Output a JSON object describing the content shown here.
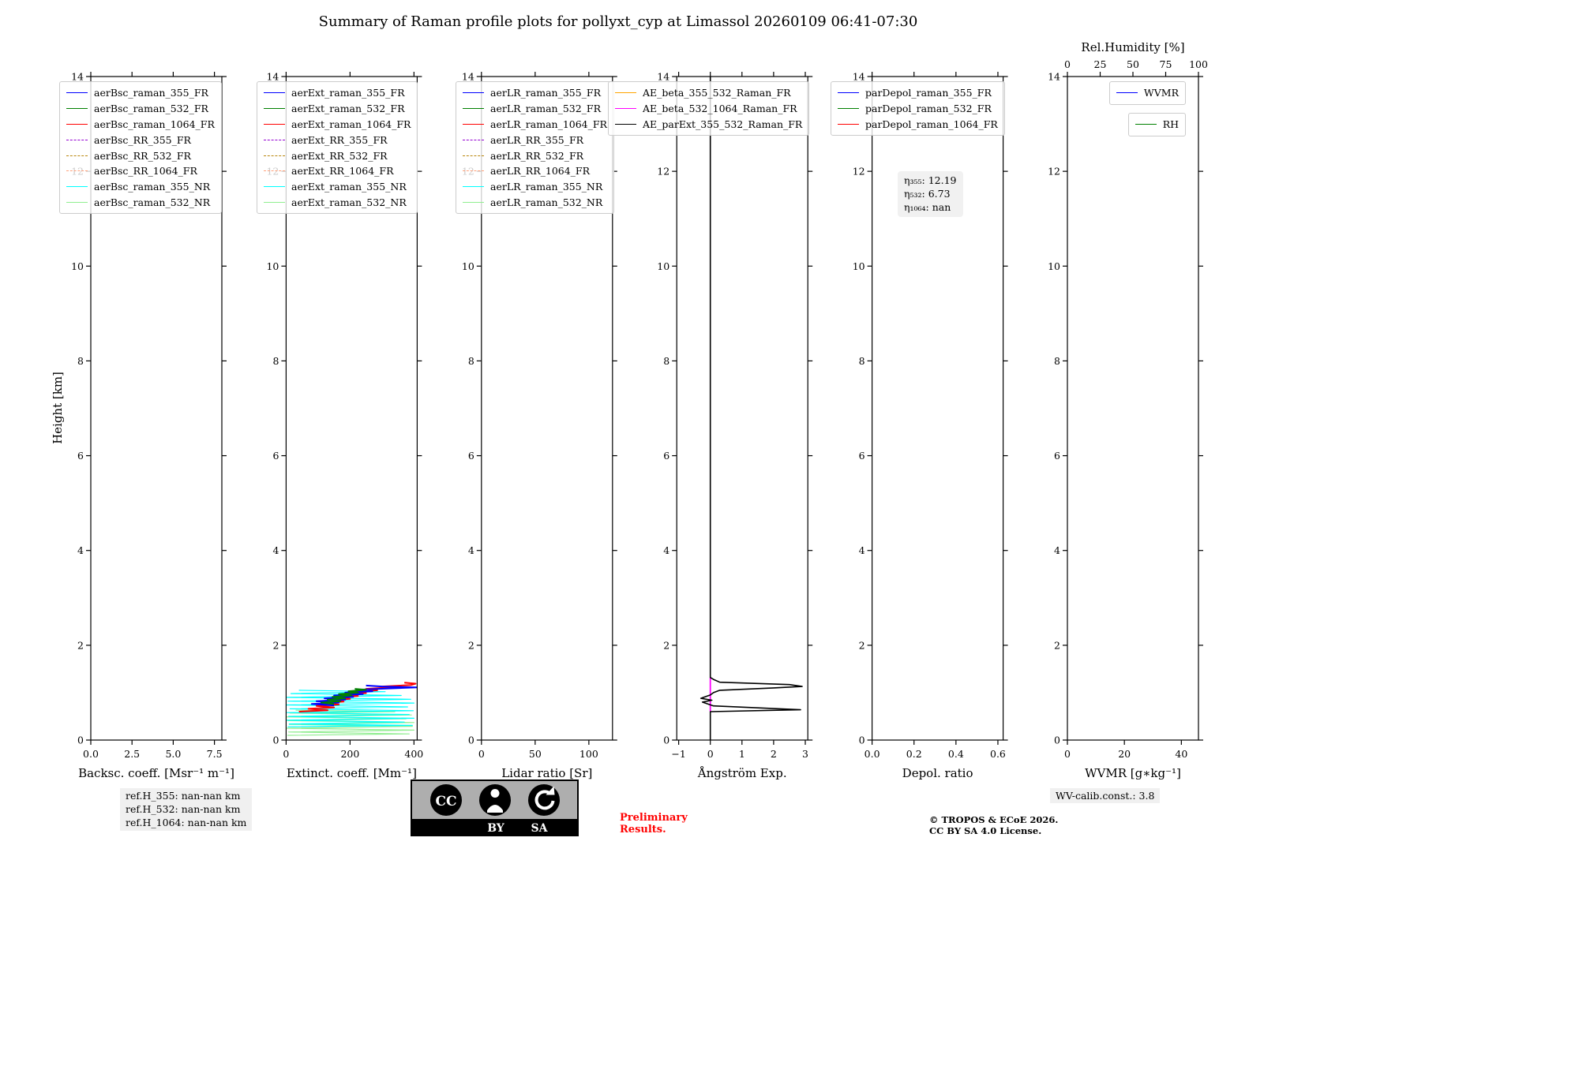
{
  "title": "Summary of Raman profile plots for pollyxt_cyp at Limassol 20260109 06:41-07:30",
  "ylabel": "Height [km]",
  "footer": {
    "ref_heights": [
      "ref.H_355: nan-nan km",
      "ref.H_532: nan-nan km",
      "ref.H_1064: nan-nan km"
    ],
    "cc_label": "CC",
    "cc_by": "BY",
    "cc_sa": "SA",
    "preliminary_line1": "Preliminary",
    "preliminary_line2": "Results.",
    "copyright_line1": "© TROPOS & ECoE 2026.",
    "copyright_line2": "CC BY SA 4.0 License.",
    "wv_calib": "WV-calib.const.: 3.8"
  },
  "chart_data": [
    {
      "type": "line",
      "id": "backscatter",
      "xlabel": "Backsc. coeff. [Msr⁻¹ m⁻¹]",
      "xlim": [
        0,
        7.95
      ],
      "xticks": [
        {
          "v": 0,
          "t": "0.0"
        },
        {
          "v": 2.5,
          "t": "2.5"
        },
        {
          "v": 5,
          "t": "5.0"
        },
        {
          "v": 7.5,
          "t": "7.5"
        }
      ],
      "ylim": [
        0,
        14
      ],
      "yticks": [
        0,
        2,
        4,
        6,
        8,
        10,
        12,
        14
      ],
      "legend": [
        {
          "label": "aerBsc_raman_355_FR",
          "color": "#0000ff",
          "dash": false
        },
        {
          "label": "aerBsc_raman_532_FR",
          "color": "#008000",
          "dash": false
        },
        {
          "label": "aerBsc_raman_1064_FR",
          "color": "#ff0000",
          "dash": false
        },
        {
          "label": "aerBsc_RR_355_FR",
          "color": "#9400d3",
          "dash": true
        },
        {
          "label": "aerBsc_RR_532_FR",
          "color": "#b8860b",
          "dash": true
        },
        {
          "label": "aerBsc_RR_1064_FR",
          "color": "#ffa07a",
          "dash": true
        },
        {
          "label": "aerBsc_raman_355_NR",
          "color": "#00ffff",
          "dash": false
        },
        {
          "label": "aerBsc_raman_532_NR",
          "color": "#90ee90",
          "dash": false
        }
      ],
      "series": []
    },
    {
      "type": "line",
      "id": "extinction",
      "xlabel": "Extinct. coeff. [Mm⁻¹]",
      "xlim": [
        0,
        410
      ],
      "xticks": [
        {
          "v": 0,
          "t": "0"
        },
        {
          "v": 200,
          "t": "200"
        },
        {
          "v": 400,
          "t": "400"
        }
      ],
      "ylim": [
        0,
        14
      ],
      "yticks": [
        0,
        2,
        4,
        6,
        8,
        10,
        12,
        14
      ],
      "legend": [
        {
          "label": "aerExt_raman_355_FR",
          "color": "#0000ff",
          "dash": false
        },
        {
          "label": "aerExt_raman_532_FR",
          "color": "#008000",
          "dash": false
        },
        {
          "label": "aerExt_raman_1064_FR",
          "color": "#ff0000",
          "dash": false
        },
        {
          "label": "aerExt_RR_355_FR",
          "color": "#9400d3",
          "dash": true
        },
        {
          "label": "aerExt_RR_532_FR",
          "color": "#b8860b",
          "dash": true
        },
        {
          "label": "aerExt_RR_1064_FR",
          "color": "#ffa07a",
          "dash": true
        },
        {
          "label": "aerExt_raman_355_NR",
          "color": "#00ffff",
          "dash": false
        },
        {
          "label": "aerExt_raman_532_NR",
          "color": "#90ee90",
          "dash": false
        }
      ],
      "series": [
        {
          "name": "aerExt_raman_532_NR",
          "color": "#90ee90",
          "w": 1.2,
          "dash": false,
          "points": [
            [
              4,
              0.1
            ],
            [
              385,
              0.13
            ],
            [
              8,
              0.17
            ],
            [
              400,
              0.21
            ],
            [
              2,
              0.25
            ],
            [
              395,
              0.29
            ],
            [
              10,
              0.33
            ],
            [
              400,
              0.37
            ],
            [
              5,
              0.41
            ],
            [
              375,
              0.45
            ],
            [
              0,
              0.49
            ],
            [
              392,
              0.53
            ],
            [
              12,
              0.57
            ],
            [
              340,
              0.6
            ],
            [
              30,
              0.63
            ]
          ]
        },
        {
          "name": "aerExt_raman_355_NR",
          "color": "#00ffff",
          "w": 1.2,
          "dash": false,
          "points": [
            [
              5,
              0.28
            ],
            [
              395,
              0.31
            ],
            [
              10,
              0.34
            ],
            [
              370,
              0.38
            ],
            [
              0,
              0.42
            ],
            [
              400,
              0.46
            ],
            [
              8,
              0.5
            ],
            [
              385,
              0.54
            ],
            [
              3,
              0.58
            ],
            [
              398,
              0.62
            ],
            [
              12,
              0.66
            ],
            [
              380,
              0.7
            ],
            [
              2,
              0.74
            ],
            [
              400,
              0.78
            ],
            [
              6,
              0.82
            ],
            [
              390,
              0.86
            ],
            [
              0,
              0.9
            ],
            [
              360,
              0.94
            ],
            [
              15,
              0.98
            ],
            [
              310,
              1.02
            ],
            [
              40,
              1.05
            ]
          ]
        },
        {
          "name": "aerExt_raman_1064_FR",
          "color": "#ff0000",
          "w": 2,
          "dash": false,
          "points": [
            [
              40,
              0.6
            ],
            [
              130,
              0.63
            ],
            [
              70,
              0.66
            ],
            [
              150,
              0.69
            ],
            [
              95,
              0.72
            ],
            [
              165,
              0.75
            ],
            [
              115,
              0.78
            ],
            [
              180,
              0.81
            ],
            [
              135,
              0.84
            ],
            [
              200,
              0.87
            ],
            [
              160,
              0.9
            ],
            [
              225,
              0.93
            ],
            [
              185,
              0.96
            ],
            [
              250,
              0.99
            ],
            [
              215,
              1.02
            ],
            [
              285,
              1.05
            ],
            [
              250,
              1.08
            ],
            [
              330,
              1.11
            ],
            [
              300,
              1.13
            ],
            [
              390,
              1.16
            ],
            [
              405,
              1.19
            ],
            [
              370,
              1.21
            ]
          ]
        },
        {
          "name": "aerExt_raman_355_FR",
          "color": "#0000ff",
          "w": 2,
          "dash": false,
          "points": [
            [
              150,
              0.73
            ],
            [
              80,
              0.76
            ],
            [
              165,
              0.79
            ],
            [
              95,
              0.82
            ],
            [
              185,
              0.85
            ],
            [
              120,
              0.88
            ],
            [
              210,
              0.91
            ],
            [
              150,
              0.94
            ],
            [
              240,
              0.97
            ],
            [
              185,
              1.0
            ],
            [
              270,
              1.03
            ],
            [
              220,
              1.06
            ],
            [
              330,
              1.09
            ],
            [
              408,
              1.11
            ],
            [
              300,
              1.13
            ],
            [
              250,
              1.15
            ]
          ]
        },
        {
          "name": "aerExt_raman_532_FR",
          "color": "#008000",
          "w": 2,
          "dash": false,
          "points": [
            [
              150,
              0.76
            ],
            [
              110,
              0.79
            ],
            [
              170,
              0.82
            ],
            [
              130,
              0.85
            ],
            [
              185,
              0.88
            ],
            [
              145,
              0.91
            ],
            [
              205,
              0.94
            ],
            [
              165,
              0.97
            ],
            [
              225,
              1.0
            ],
            [
              195,
              1.03
            ],
            [
              250,
              1.06
            ],
            [
              215,
              1.08
            ]
          ]
        }
      ]
    },
    {
      "type": "line",
      "id": "lidar-ratio",
      "xlabel": "Lidar ratio [Sr]",
      "xlim": [
        0,
        122
      ],
      "xticks": [
        {
          "v": 0,
          "t": "0"
        },
        {
          "v": 50,
          "t": "50"
        },
        {
          "v": 100,
          "t": "100"
        }
      ],
      "ylim": [
        0,
        14
      ],
      "yticks": [
        0,
        2,
        4,
        6,
        8,
        10,
        12,
        14
      ],
      "legend": [
        {
          "label": "aerLR_raman_355_FR",
          "color": "#0000ff",
          "dash": false
        },
        {
          "label": "aerLR_raman_532_FR",
          "color": "#008000",
          "dash": false
        },
        {
          "label": "aerLR_raman_1064_FR",
          "color": "#ff0000",
          "dash": false
        },
        {
          "label": "aerLR_RR_355_FR",
          "color": "#9400d3",
          "dash": true
        },
        {
          "label": "aerLR_RR_532_FR",
          "color": "#b8860b",
          "dash": true
        },
        {
          "label": "aerLR_RR_1064_FR",
          "color": "#ffa07a",
          "dash": true
        },
        {
          "label": "aerLR_raman_355_NR",
          "color": "#00ffff",
          "dash": false
        },
        {
          "label": "aerLR_raman_532_NR",
          "color": "#90ee90",
          "dash": false
        }
      ],
      "series": []
    },
    {
      "type": "line",
      "id": "angstroem",
      "xlabel": "Ångström Exp.",
      "xlim": [
        -1.06,
        3.08
      ],
      "xticks": [
        {
          "v": -1,
          "t": "−1"
        },
        {
          "v": 0,
          "t": "0"
        },
        {
          "v": 1,
          "t": "1"
        },
        {
          "v": 2,
          "t": "2"
        },
        {
          "v": 3,
          "t": "3"
        }
      ],
      "ylim": [
        0,
        14
      ],
      "yticks": [
        0,
        2,
        4,
        6,
        8,
        10,
        12,
        14
      ],
      "legend": [
        {
          "label": "AE_beta_355_532_Raman_FR",
          "color": "#ffa500",
          "dash": false
        },
        {
          "label": "AE_beta_532_1064_Raman_FR",
          "color": "#ff00ff",
          "dash": false
        },
        {
          "label": "AE_parExt_355_532_Raman_FR",
          "color": "#000000",
          "dash": false
        }
      ],
      "series": [
        {
          "name": "AE_beta_355_532_Raman_FR",
          "color": "#ffa500",
          "w": 1.6,
          "dash": false,
          "points": []
        },
        {
          "name": "AE_beta_532_1064_Raman_FR",
          "color": "#ff00ff",
          "w": 1.8,
          "dash": false,
          "points": [
            [
              0,
              0.6
            ],
            [
              0,
              1.32
            ]
          ]
        },
        {
          "name": "AE_parExt_355_532_Raman_FR",
          "color": "#000000",
          "w": 1.6,
          "dash": false,
          "points": [
            [
              0,
              14
            ],
            [
              0,
              1.32
            ],
            [
              0.1,
              1.28
            ],
            [
              0.3,
              1.22
            ],
            [
              2.5,
              1.17
            ],
            [
              2.9,
              1.13
            ],
            [
              2.0,
              1.1
            ],
            [
              0.3,
              1.05
            ],
            [
              0.1,
              1.0
            ],
            [
              0.0,
              0.95
            ],
            [
              -0.3,
              0.88
            ],
            [
              0.05,
              0.84
            ],
            [
              -0.25,
              0.8
            ],
            [
              0.1,
              0.72
            ],
            [
              2.85,
              0.64
            ],
            [
              0.0,
              0.6
            ],
            [
              0,
              0
            ]
          ]
        }
      ]
    },
    {
      "type": "line",
      "id": "depol",
      "xlabel": "Depol. ratio",
      "xlim": [
        0,
        0.625
      ],
      "xticks": [
        {
          "v": 0,
          "t": "0.0"
        },
        {
          "v": 0.2,
          "t": "0.2"
        },
        {
          "v": 0.4,
          "t": "0.4"
        },
        {
          "v": 0.6,
          "t": "0.6"
        }
      ],
      "ylim": [
        0,
        14
      ],
      "yticks": [
        0,
        2,
        4,
        6,
        8,
        10,
        12,
        14
      ],
      "legend": [
        {
          "label": "parDepol_raman_355_FR",
          "color": "#0000ff",
          "dash": false
        },
        {
          "label": "parDepol_raman_532_FR",
          "color": "#008000",
          "dash": false
        },
        {
          "label": "parDepol_raman_1064_FR",
          "color": "#ff0000",
          "dash": false
        }
      ],
      "annotation": {
        "lines": [
          "η₃₅₅: 12.19",
          "η₅₃₂: 6.73",
          "η₁₀₆₄: nan"
        ]
      },
      "series": []
    },
    {
      "type": "line",
      "id": "wvmr",
      "xlabel": "WVMR [g∗kg⁻¹]",
      "xlim": [
        0,
        46
      ],
      "xticks": [
        {
          "v": 0,
          "t": "0"
        },
        {
          "v": 20,
          "t": "20"
        },
        {
          "v": 40,
          "t": "40"
        }
      ],
      "ylim": [
        0,
        14
      ],
      "yticks": [
        0,
        2,
        4,
        6,
        8,
        10,
        12,
        14
      ],
      "top_axis": {
        "label": "Rel.Humidity [%]",
        "xlim": [
          0,
          100
        ],
        "ticks": [
          0,
          25,
          50,
          75,
          100
        ]
      },
      "legend_boxes": [
        [
          {
            "label": "WVMR",
            "color": "#0000ff",
            "dash": false
          }
        ],
        [
          {
            "label": "RH",
            "color": "#008000",
            "dash": false
          }
        ]
      ],
      "series": []
    }
  ]
}
